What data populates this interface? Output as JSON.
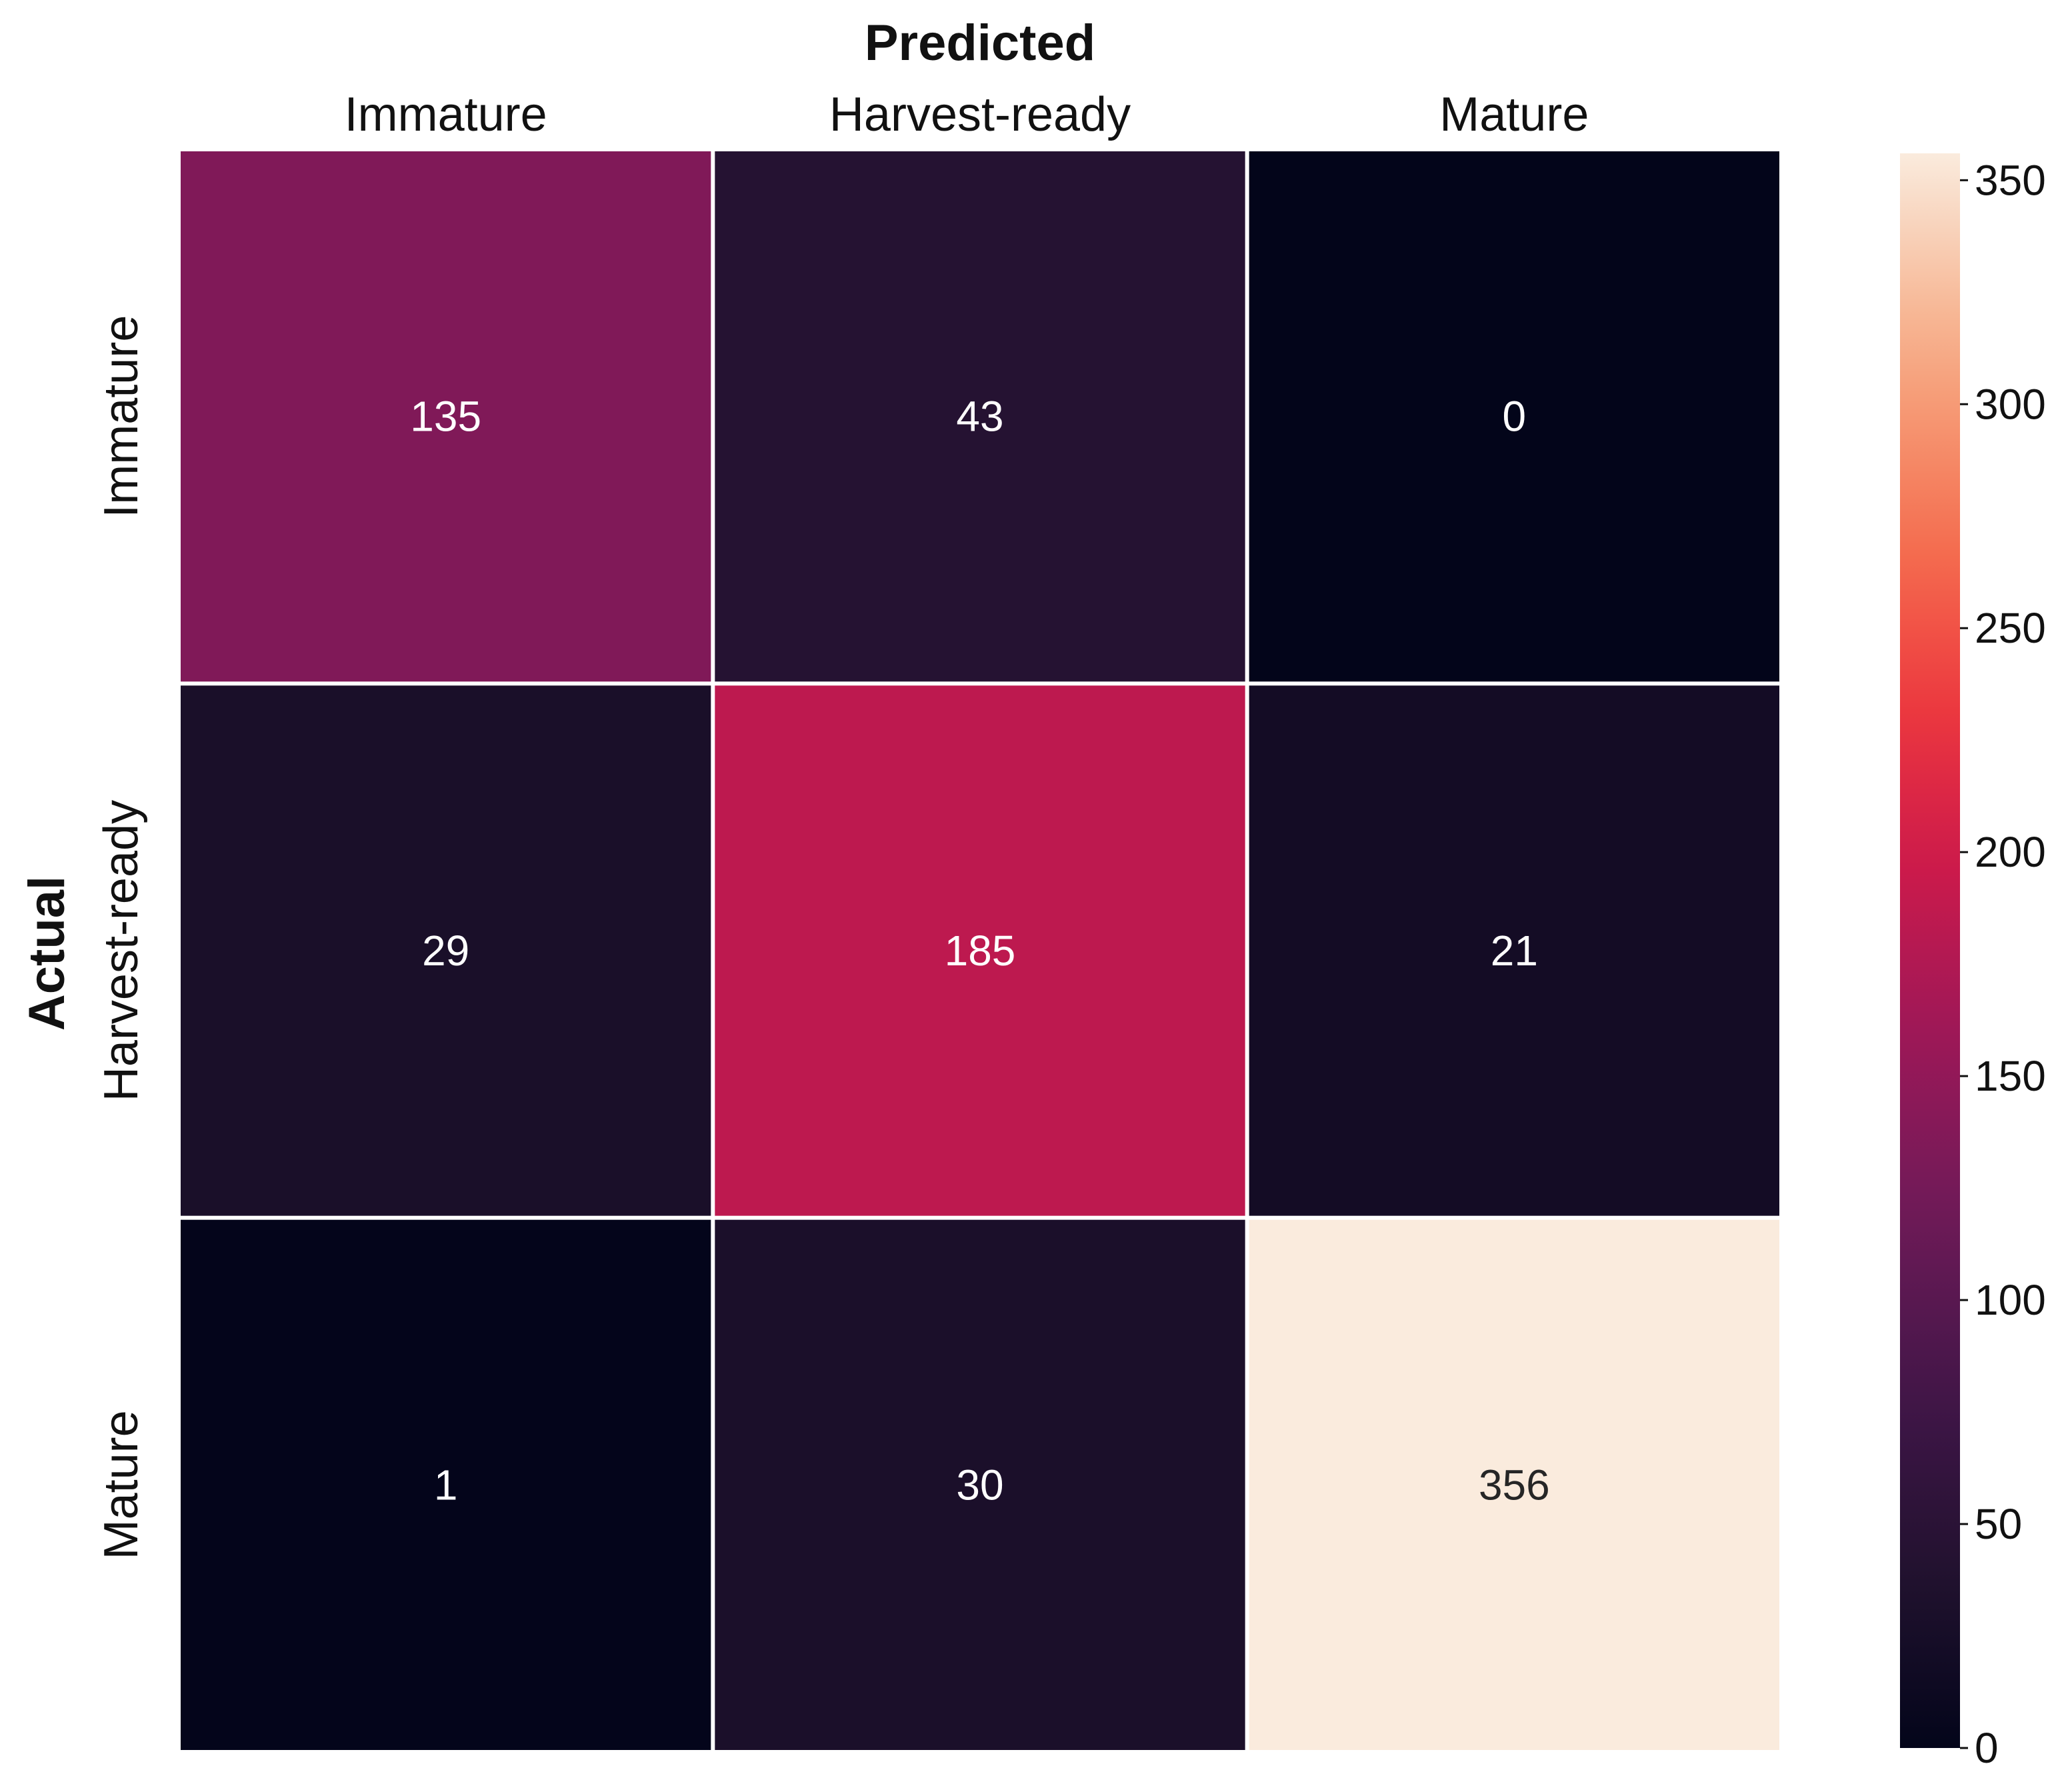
{
  "chart_data": {
    "type": "heatmap",
    "xlabel": "Predicted",
    "ylabel": "Actual",
    "x_categories": [
      "Immature",
      "Harvest-ready",
      "Mature"
    ],
    "y_categories": [
      "Immature",
      "Harvest-ready",
      "Mature"
    ],
    "values": [
      [
        135,
        43,
        0
      ],
      [
        29,
        185,
        21
      ],
      [
        1,
        30,
        356
      ]
    ],
    "colorbar": {
      "min": 0,
      "max": 356,
      "ticks": [
        0,
        50,
        100,
        150,
        200,
        250,
        300,
        350
      ],
      "colormap": "rocket"
    },
    "x_axis_position": "top",
    "grid": false
  }
}
